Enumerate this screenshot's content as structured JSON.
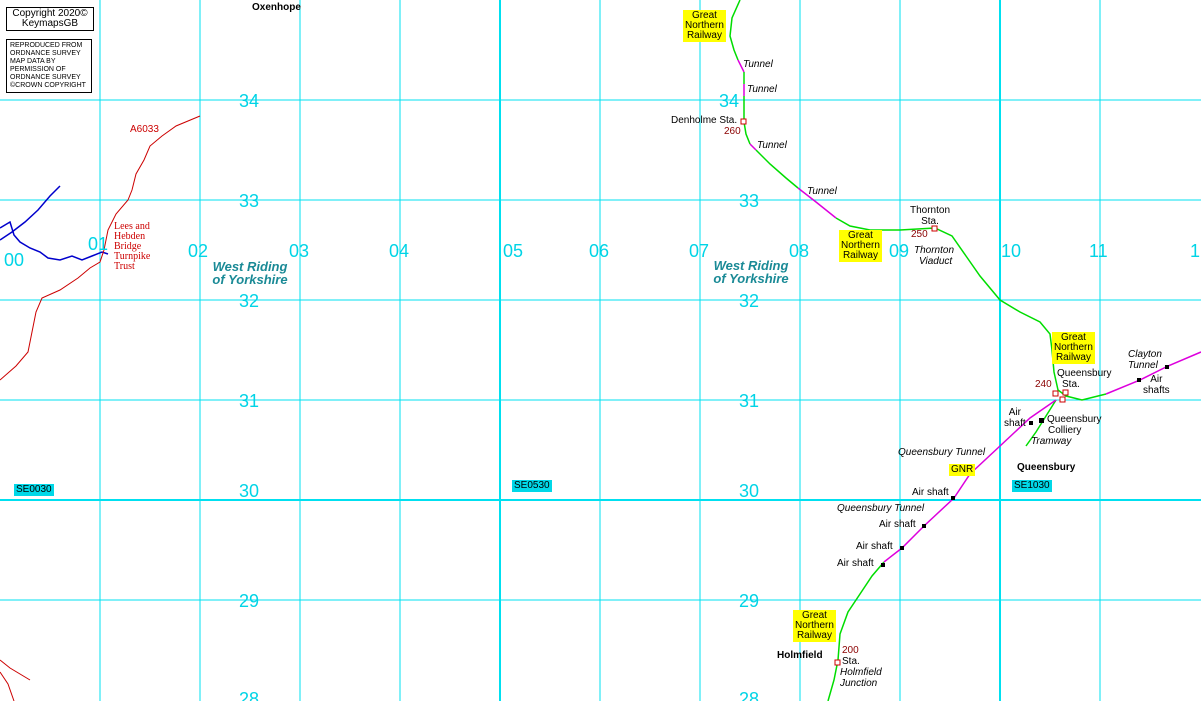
{
  "copyright": {
    "line1": "Copyright 2020©",
    "line2": "KeymapsGB"
  },
  "license": {
    "l1": "REPRODUCED FROM",
    "l2": "ORDNANCE SURVEY",
    "l3": "MAP DATA BY",
    "l4": "PERMISSION OF",
    "l5": "ORDNANCE SURVEY",
    "l6": "©CROWN COPYRIGHT"
  },
  "grid": {
    "eastings": [
      "00",
      "01",
      "02",
      "03",
      "04",
      "05",
      "06",
      "07",
      "08",
      "09",
      "10",
      "11",
      "1"
    ],
    "northings": [
      "34",
      "33",
      "32",
      "31",
      "30",
      "29",
      "28"
    ],
    "squares": [
      "SE0030",
      "SE0530",
      "SE1030"
    ]
  },
  "places": {
    "oxenhope": "Oxenhope",
    "queensbury": "Queensbury",
    "holmfield": "Holmfield"
  },
  "county": {
    "l1": "West Riding",
    "l2": "of Yorkshire"
  },
  "road": {
    "a6033": "A6033"
  },
  "trust": {
    "l1": "Lees and",
    "l2": "Hebden",
    "l3": "Bridge",
    "l4": "Turnpike",
    "l5": "Trust"
  },
  "railway_label": {
    "l1": "Great",
    "l2": "Northern",
    "l3": "Railway"
  },
  "gnr": "GNR",
  "features": {
    "tunnel": "Tunnel",
    "denholme_sta": "Denholme Sta.",
    "thornton_sta_l1": "Thornton",
    "thornton_sta_l2": "Sta.",
    "thornton_viaduct_l1": "Thornton",
    "thornton_viaduct_l2": "Viaduct",
    "clayton_tunnel_l1": "Clayton",
    "clayton_tunnel_l2": "Tunnel",
    "air_shafts_l1": "Air",
    "air_shafts_l2": "shafts",
    "queensbury_sta_l1": "Queensbury",
    "queensbury_sta_l2": "Sta.",
    "air_shaft_l1": "Air",
    "air_shaft_l2": "shaft",
    "air_shaft": "Air shaft",
    "colliery_l1": "Queensbury",
    "colliery_l2": "Colliery",
    "tramway": "Tramway",
    "queensbury_tunnel": "Queensbury Tunnel",
    "holmfield_sta": "Sta.",
    "holmfield_junction_l1": "Holmfield",
    "holmfield_junction_l2": "Junction"
  },
  "heights": {
    "h260": "260",
    "h250": "250",
    "h240": "240",
    "h200": "200"
  },
  "colors": {
    "grid": "#00e0f0",
    "railway": "#00dd00",
    "tunnel": "#dd00dd",
    "river": "#0000cc",
    "road": "#cc0000",
    "label_bg": "#ffff00"
  }
}
